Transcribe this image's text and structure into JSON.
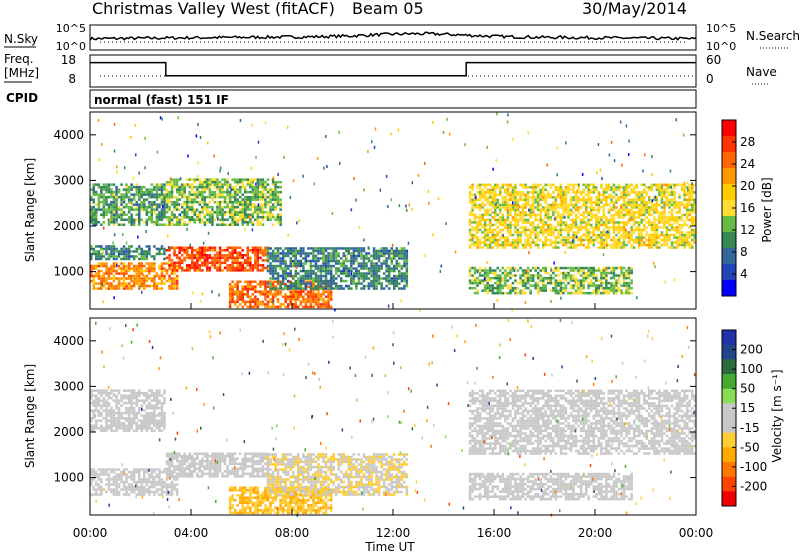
{
  "header": {
    "station": "Christmas Valley West (fitACF)",
    "beam": "Beam 05",
    "date": "30/May/2014"
  },
  "sky_panel": {
    "label": "N.Sky",
    "ticks_left": [
      "10^5",
      "10^0"
    ],
    "ticks_right": [
      "10^5",
      "10^0"
    ],
    "right_label": "N.Search"
  },
  "freq_panel": {
    "label_line1": "Freq.",
    "label_line2": "[MHz]",
    "ticks_left": [
      "18",
      "8"
    ],
    "ticks_right": [
      "60",
      "0"
    ],
    "right_label": "Nave"
  },
  "cpid": {
    "label": "CPID",
    "text": "normal (fast) 151 IF"
  },
  "xaxis": {
    "label": "Time UT",
    "ticks": [
      "00:00",
      "04:00",
      "08:00",
      "12:00",
      "16:00",
      "20:00",
      "00:00"
    ]
  },
  "power_panel": {
    "ylabel": "Slant Range [km]",
    "yticks": [
      "4000",
      "3000",
      "2000",
      "1000"
    ],
    "colorbar_label": "Power [dB]",
    "colorbar_ticks": [
      "28",
      "24",
      "20",
      "16",
      "12",
      "8",
      "4"
    ],
    "colorbar_colors": [
      "#ff0000",
      "#ff3300",
      "#ff6600",
      "#ff9900",
      "#ffcc00",
      "#ffdd33",
      "#66bb44",
      "#338855",
      "#336699",
      "#2244bb",
      "#0000ff"
    ]
  },
  "velocity_panel": {
    "ylabel": "Slant Range [km]",
    "yticks": [
      "4000",
      "3000",
      "2000",
      "1000"
    ],
    "colorbar_label": "Velocity [m s⁻¹]",
    "colorbar_ticks": [
      "200",
      "100",
      "50",
      "15",
      "-15",
      "-50",
      "-100",
      "-200"
    ],
    "colorbar_colors": [
      "#2233aa",
      "#224488",
      "#2d6a3c",
      "#44aa33",
      "#88dd55",
      "#c8c8c8",
      "#c8c8c8",
      "#ffcc33",
      "#ffaa00",
      "#ff7700",
      "#ff4400",
      "#ee0000"
    ]
  },
  "chart_data": {
    "type": "heatmap",
    "x_unit": "hours UT",
    "xlim": [
      0,
      24
    ],
    "y_unit": "km",
    "ylim": [
      180,
      4500
    ],
    "frequency_trace": {
      "x": [
        0,
        3.0,
        3.0,
        14.9,
        14.9,
        24
      ],
      "y": [
        16.5,
        16.5,
        11,
        11,
        16.5,
        16.5
      ]
    },
    "power_regions": [
      {
        "name": "morning band 2400",
        "t": [
          0,
          3.0
        ],
        "r": [
          2000,
          2900
        ],
        "power_db": 12
      },
      {
        "name": "morning band 1300",
        "t": [
          0,
          3.0
        ],
        "r": [
          1250,
          1550
        ],
        "power_db": 10
      },
      {
        "name": "low range echoes",
        "t": [
          0,
          3.5
        ],
        "r": [
          600,
          1200
        ],
        "power_db": 24
      },
      {
        "name": "band 1300 strong",
        "t": [
          3.0,
          7.0
        ],
        "r": [
          1000,
          1500
        ],
        "power_db": 28
      },
      {
        "name": "near range strong",
        "t": [
          5.5,
          9.5
        ],
        "r": [
          200,
          800
        ],
        "power_db": 26
      },
      {
        "name": "mid range 1000",
        "t": [
          7.0,
          12.5
        ],
        "r": [
          600,
          1500
        ],
        "power_db": 10
      },
      {
        "name": "upper band 2700",
        "t": [
          3.0,
          7.5
        ],
        "r": [
          2000,
          3000
        ],
        "power_db": 14
      },
      {
        "name": "evening band 2400",
        "t": [
          15.0,
          24.0
        ],
        "r": [
          1500,
          2900
        ],
        "power_db": 18
      },
      {
        "name": "evening low band",
        "t": [
          15.0,
          21.5
        ],
        "r": [
          500,
          1100
        ],
        "power_db": 14
      }
    ],
    "velocity_regions": [
      {
        "name": "morning band 2400",
        "t": [
          0,
          3.0
        ],
        "r": [
          2000,
          2900
        ],
        "velocity": 0
      },
      {
        "name": "low range echoes",
        "t": [
          0,
          3.5
        ],
        "r": [
          600,
          1200
        ],
        "velocity": 0
      },
      {
        "name": "band 1300",
        "t": [
          3.0,
          7.0
        ],
        "r": [
          1000,
          1500
        ],
        "velocity": 0
      },
      {
        "name": "near range",
        "t": [
          5.5,
          9.5
        ],
        "r": [
          200,
          800
        ],
        "velocity": -80
      },
      {
        "name": "mid range 1000",
        "t": [
          7.0,
          12.5
        ],
        "r": [
          600,
          1500
        ],
        "velocity": -40
      },
      {
        "name": "evening band 2400",
        "t": [
          15.0,
          24.0
        ],
        "r": [
          1500,
          2900
        ],
        "velocity": 0
      },
      {
        "name": "evening low band",
        "t": [
          15.0,
          21.5
        ],
        "r": [
          500,
          1100
        ],
        "velocity": 0
      }
    ]
  }
}
